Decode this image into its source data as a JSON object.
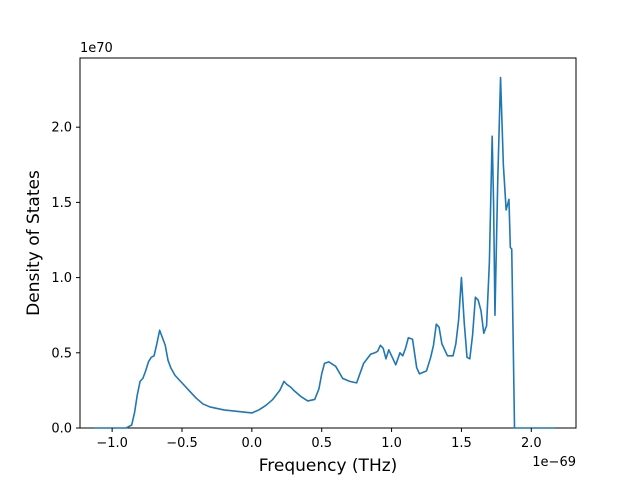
{
  "chart_data": {
    "type": "line",
    "title": "",
    "xlabel": "Frequency (THz)",
    "ylabel": "Density of States",
    "x_offset_label": "1e−69",
    "y_offset_label": "1e70",
    "xlim": [
      -1.23,
      2.32
    ],
    "ylim": [
      0,
      2.46
    ],
    "xticks": [
      -1.0,
      -0.5,
      0.0,
      0.5,
      1.0,
      1.5,
      2.0
    ],
    "xtick_labels": [
      "−1.0",
      "−0.5",
      "0.0",
      "0.5",
      "1.0",
      "1.5",
      "2.0"
    ],
    "yticks": [
      0.0,
      0.5,
      1.0,
      1.5,
      2.0
    ],
    "ytick_labels": [
      "0.0",
      "0.5",
      "1.0",
      "1.5",
      "2.0"
    ],
    "grid": false,
    "legend": "none",
    "series": [
      {
        "color": "#1f77b4",
        "x": [
          -1.13,
          -0.9,
          -0.86,
          -0.84,
          -0.82,
          -0.8,
          -0.78,
          -0.76,
          -0.74,
          -0.72,
          -0.7,
          -0.68,
          -0.66,
          -0.64,
          -0.62,
          -0.6,
          -0.58,
          -0.55,
          -0.5,
          -0.45,
          -0.4,
          -0.35,
          -0.3,
          -0.2,
          -0.1,
          0.0,
          0.05,
          0.1,
          0.15,
          0.2,
          0.23,
          0.25,
          0.28,
          0.3,
          0.35,
          0.4,
          0.45,
          0.48,
          0.5,
          0.52,
          0.55,
          0.6,
          0.65,
          0.7,
          0.75,
          0.8,
          0.85,
          0.88,
          0.9,
          0.92,
          0.94,
          0.96,
          0.98,
          1.0,
          1.03,
          1.06,
          1.08,
          1.1,
          1.12,
          1.15,
          1.18,
          1.2,
          1.25,
          1.28,
          1.3,
          1.32,
          1.34,
          1.36,
          1.4,
          1.44,
          1.46,
          1.48,
          1.5,
          1.52,
          1.54,
          1.56,
          1.58,
          1.6,
          1.62,
          1.64,
          1.66,
          1.68,
          1.7,
          1.72,
          1.73,
          1.74,
          1.76,
          1.78,
          1.8,
          1.82,
          1.84,
          1.85,
          1.86,
          1.87,
          1.88,
          1.9,
          2.0,
          2.17
        ],
        "y": [
          0.0,
          0.0,
          0.02,
          0.1,
          0.22,
          0.31,
          0.33,
          0.38,
          0.44,
          0.47,
          0.48,
          0.56,
          0.65,
          0.6,
          0.55,
          0.45,
          0.4,
          0.35,
          0.3,
          0.25,
          0.2,
          0.16,
          0.14,
          0.12,
          0.11,
          0.1,
          0.12,
          0.15,
          0.19,
          0.25,
          0.31,
          0.29,
          0.27,
          0.25,
          0.21,
          0.18,
          0.19,
          0.26,
          0.36,
          0.43,
          0.44,
          0.41,
          0.33,
          0.31,
          0.3,
          0.43,
          0.49,
          0.5,
          0.51,
          0.55,
          0.53,
          0.46,
          0.52,
          0.48,
          0.42,
          0.5,
          0.48,
          0.53,
          0.6,
          0.59,
          0.4,
          0.36,
          0.38,
          0.47,
          0.55,
          0.69,
          0.67,
          0.56,
          0.48,
          0.48,
          0.56,
          0.72,
          1.0,
          0.7,
          0.47,
          0.46,
          0.62,
          0.87,
          0.85,
          0.78,
          0.63,
          0.68,
          1.1,
          1.94,
          1.5,
          0.75,
          1.65,
          2.33,
          1.75,
          1.45,
          1.52,
          1.2,
          1.19,
          0.6,
          0.0,
          0.0,
          0.0,
          0.0
        ]
      }
    ]
  }
}
